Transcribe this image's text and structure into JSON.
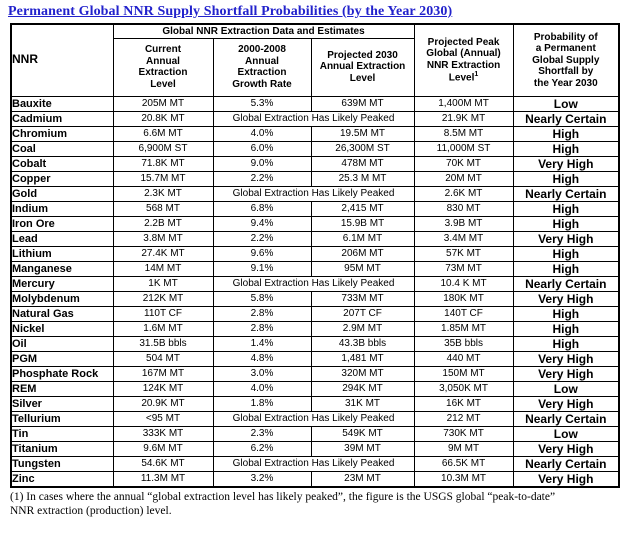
{
  "title": "Permanent Global NNR Supply Shortfall Probabilities (by the Year 2030)",
  "colors": {
    "title_blue": "#2222CC",
    "border": "#000000",
    "text": "#000000",
    "background": "#FFFFFF"
  },
  "table": {
    "group_header": "Global NNR Extraction Data and Estimates",
    "columns": {
      "nnr": "NNR",
      "current": "Current\nAnnual\nExtraction\nLevel",
      "growth": "2000-2008\nAnnual\nExtraction\nGrowth Rate",
      "projected": "Projected 2030\nAnnual Extraction\nLevel",
      "peak": "Projected Peak\nGlobal (Annual)\nNNR Extraction\nLevel",
      "peak_sup": "1",
      "probability": "Probability of\na Permanent\nGlobal Supply\nShortfall by\nthe Year 2030"
    },
    "peaked_text": "Global Extraction Has Likely Peaked",
    "rows": [
      {
        "name": "Bauxite",
        "current": "205M MT",
        "growth": "5.3%",
        "projected": "639M MT",
        "peak": "1,400M MT",
        "probability": "Low"
      },
      {
        "name": "Cadmium",
        "current": "20.8K MT",
        "peaked": true,
        "peak": "21.9K MT",
        "probability": "Nearly Certain"
      },
      {
        "name": "Chromium",
        "current": "6.6M MT",
        "growth": "4.0%",
        "projected": "19.5M MT",
        "peak": "8.5M MT",
        "probability": "High"
      },
      {
        "name": "Coal",
        "current": "6,900M ST",
        "growth": "6.0%",
        "projected": "26,300M ST",
        "peak": "11,000M ST",
        "probability": "High"
      },
      {
        "name": "Cobalt",
        "current": "71.8K MT",
        "growth": "9.0%",
        "projected": "478M MT",
        "peak": "70K MT",
        "probability": "Very High"
      },
      {
        "name": "Copper",
        "current": "15.7M MT",
        "growth": "2.2%",
        "projected": "25.3 M MT",
        "peak": "20M MT",
        "probability": "High"
      },
      {
        "name": "Gold",
        "current": "2.3K MT",
        "peaked": true,
        "peak": "2.6K MT",
        "probability": "Nearly Certain"
      },
      {
        "name": "Indium",
        "current": "568 MT",
        "growth": "6.8%",
        "projected": "2,415 MT",
        "peak": "830 MT",
        "probability": "High"
      },
      {
        "name": "Iron Ore",
        "current": "2.2B MT",
        "growth": "9.4%",
        "projected": "15.9B MT",
        "peak": "3.9B MT",
        "probability": "High"
      },
      {
        "name": "Lead",
        "current": "3.8M MT",
        "growth": "2.2%",
        "projected": "6.1M MT",
        "peak": "3.4M MT",
        "probability": "Very High"
      },
      {
        "name": "Lithium",
        "current": "27.4K MT",
        "growth": "9.6%",
        "projected": "206M MT",
        "peak": "57K MT",
        "probability": "High"
      },
      {
        "name": "Manganese",
        "current": "14M MT",
        "growth": "9.1%",
        "projected": "95M MT",
        "peak": "73M MT",
        "probability": "High"
      },
      {
        "name": "Mercury",
        "current": "1K MT",
        "peaked": true,
        "peak": "10.4 K MT",
        "probability": "Nearly Certain"
      },
      {
        "name": "Molybdenum",
        "current": "212K MT",
        "growth": "5.8%",
        "projected": "733M MT",
        "peak": "180K MT",
        "probability": "Very High"
      },
      {
        "name": "Natural Gas",
        "current": "110T CF",
        "growth": "2.8%",
        "projected": "207T CF",
        "peak": "140T CF",
        "probability": "High"
      },
      {
        "name": "Nickel",
        "current": "1.6M MT",
        "growth": "2.8%",
        "projected": "2.9M MT",
        "peak": "1.85M MT",
        "probability": "High"
      },
      {
        "name": "Oil",
        "current": "31.5B bbls",
        "growth": "1.4%",
        "projected": "43.3B bbls",
        "peak": "35B bbls",
        "probability": "High"
      },
      {
        "name": "PGM",
        "current": "504 MT",
        "growth": "4.8%",
        "projected": "1,481 MT",
        "peak": "440 MT",
        "probability": "Very High"
      },
      {
        "name": "Phosphate Rock",
        "current": "167M MT",
        "growth": "3.0%",
        "projected": "320M MT",
        "peak": "150M MT",
        "probability": "Very High"
      },
      {
        "name": "REM",
        "current": "124K MT",
        "growth": "4.0%",
        "projected": "294K MT",
        "peak": "3,050K MT",
        "probability": "Low"
      },
      {
        "name": "Silver",
        "current": "20.9K MT",
        "growth": "1.8%",
        "projected": "31K MT",
        "peak": "16K MT",
        "probability": "Very High"
      },
      {
        "name": "Tellurium",
        "current": "<95 MT",
        "peaked": true,
        "peak": "212 MT",
        "probability": "Nearly Certain"
      },
      {
        "name": "Tin",
        "current": "333K MT",
        "growth": "2.3%",
        "projected": "549K MT",
        "peak": "730K MT",
        "probability": "Low"
      },
      {
        "name": "Titanium",
        "current": "9.6M MT",
        "growth": "6.2%",
        "projected": "39M MT",
        "peak": "9M MT",
        "probability": "Very High"
      },
      {
        "name": "Tungsten",
        "current": "54.6K MT",
        "peaked": true,
        "peak": "66.5K MT",
        "probability": "Nearly Certain"
      },
      {
        "name": "Zinc",
        "current": "11.3M MT",
        "growth": "3.2%",
        "projected": "23M MT",
        "peak": "10.3M MT",
        "probability": "Very High"
      }
    ]
  },
  "footnote": "(1) In cases where the annual “global extraction level has likely peaked”, the figure is the USGS global “peak-to-date”\nNNR extraction (production) level."
}
